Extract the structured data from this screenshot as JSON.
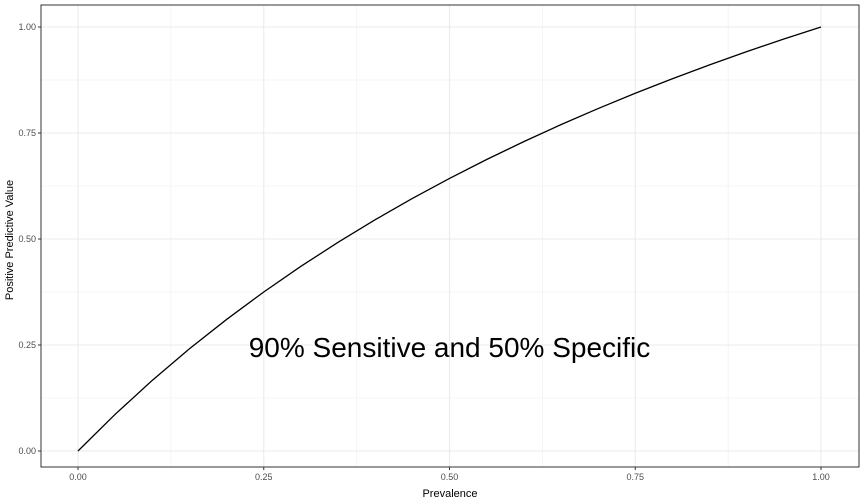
{
  "chart_data": {
    "type": "line",
    "title": "",
    "xlabel": "Prevalence",
    "ylabel": "Positive Predictive Value",
    "xlim": [
      0,
      1
    ],
    "ylim": [
      0,
      1
    ],
    "grid": true,
    "x_ticks": [
      0,
      0.25,
      0.5,
      0.75,
      1
    ],
    "x_tick_labels": [
      "0.00",
      "0.25",
      "0.50",
      "0.75",
      "1.00"
    ],
    "y_ticks": [
      0,
      0.25,
      0.5,
      0.75,
      1
    ],
    "y_tick_labels": [
      "0.00",
      "0.25",
      "0.50",
      "0.75",
      "1.00"
    ],
    "annotation": {
      "text": "90% Sensitive and 50% Specific",
      "x": 0.5,
      "y": 0.245
    },
    "series": [
      {
        "color": "#000000",
        "x": [
          0,
          0.05,
          0.1,
          0.15,
          0.2,
          0.25,
          0.3,
          0.35,
          0.4,
          0.45,
          0.5,
          0.55,
          0.6,
          0.65,
          0.7,
          0.75,
          0.8,
          0.85,
          0.9,
          0.95,
          1
        ],
        "y": [
          0,
          0.0865,
          0.1667,
          0.2411,
          0.3103,
          0.375,
          0.4355,
          0.4922,
          0.5455,
          0.5956,
          0.6429,
          0.6875,
          0.7297,
          0.7697,
          0.8077,
          0.8438,
          0.878,
          0.9107,
          0.9419,
          0.9716,
          1
        ]
      }
    ]
  }
}
